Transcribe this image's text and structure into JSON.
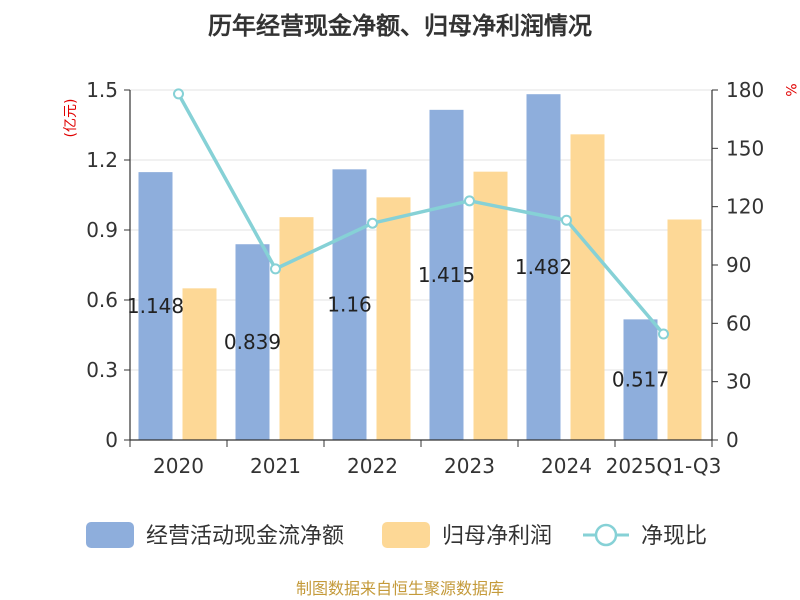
{
  "chart_data": {
    "type": "bar",
    "title": "历年经营现金净额、归母净利润情况",
    "y_left_unit": "(亿元)",
    "y_right_unit": "%",
    "categories": [
      "2020",
      "2021",
      "2022",
      "2023",
      "2024",
      "2025Q1-Q3"
    ],
    "ylim_left": [
      0,
      1.5
    ],
    "yticks_left": [
      "0",
      "0.3",
      "0.6",
      "0.9",
      "1.2",
      "1.5"
    ],
    "ylim_right": [
      0,
      180
    ],
    "yticks_right": [
      "0",
      "30",
      "60",
      "90",
      "120",
      "150",
      "180"
    ],
    "grid": true,
    "legend_position": "bottom",
    "series": [
      {
        "name": "经营活动现金流净额",
        "type": "bar",
        "axis": "left",
        "color": "#8eaedc",
        "values": [
          1.148,
          0.839,
          1.16,
          1.415,
          1.482,
          0.517
        ],
        "labels": [
          "1.148",
          "0.839",
          "1.16",
          "1.415",
          "1.482",
          "0.517"
        ]
      },
      {
        "name": "归母净利润",
        "type": "bar",
        "axis": "left",
        "color": "#fdd896",
        "values": [
          0.65,
          0.955,
          1.04,
          1.15,
          1.31,
          0.945
        ]
      },
      {
        "name": "净现比",
        "type": "line",
        "axis": "right",
        "color": "#86d1d6",
        "values": [
          178,
          88,
          111.5,
          123,
          113,
          54.5
        ]
      }
    ]
  },
  "source": "制图数据来自恒生聚源数据库"
}
